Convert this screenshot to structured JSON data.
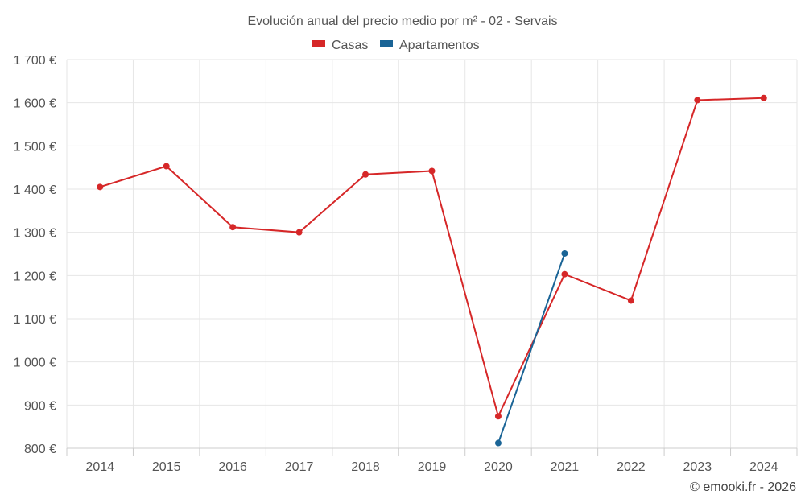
{
  "chart_data": {
    "type": "line",
    "title": "Evolución anual del precio medio por m² - 02 - Servais",
    "categories": [
      "2014",
      "2015",
      "2016",
      "2017",
      "2018",
      "2019",
      "2020",
      "2021",
      "2022",
      "2023",
      "2024"
    ],
    "series": [
      {
        "name": "Casas",
        "color": "#d62728",
        "values": [
          1405,
          1453,
          1312,
          1300,
          1434,
          1442,
          874,
          1203,
          1142,
          1606,
          1611
        ]
      },
      {
        "name": "Apartamentos",
        "color": "#1a6496",
        "values": [
          null,
          null,
          null,
          null,
          null,
          null,
          812,
          1251,
          null,
          null,
          null
        ]
      }
    ],
    "ylim": [
      800,
      1700
    ],
    "yticks": [
      800,
      900,
      1000,
      1100,
      1200,
      1300,
      1400,
      1500,
      1600,
      1700
    ],
    "ytick_labels": [
      "800 €",
      "900 €",
      "1 000 €",
      "1 100 €",
      "1 200 €",
      "1 300 €",
      "1 400 €",
      "1 500 €",
      "1 600 €",
      "1 700 €"
    ],
    "grid": true,
    "legend": "top-center"
  },
  "credit": "© emooki.fr - 2026"
}
